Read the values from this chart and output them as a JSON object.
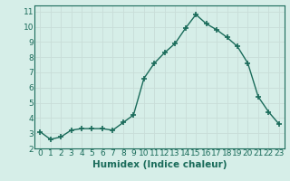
{
  "x": [
    0,
    1,
    2,
    3,
    4,
    5,
    6,
    7,
    8,
    9,
    10,
    11,
    12,
    13,
    14,
    15,
    16,
    17,
    18,
    19,
    20,
    21,
    22,
    23
  ],
  "y": [
    3.1,
    2.6,
    2.75,
    3.2,
    3.3,
    3.3,
    3.3,
    3.2,
    3.7,
    4.2,
    6.6,
    7.6,
    8.3,
    8.9,
    9.9,
    10.8,
    10.2,
    9.8,
    9.3,
    8.7,
    7.6,
    5.4,
    4.4,
    3.6
  ],
  "line_color": "#1a6b5a",
  "marker": "+",
  "marker_size": 4,
  "bg_color": "#d6eee8",
  "grid_color": "#c8ddd8",
  "xlabel": "Humidex (Indice chaleur)",
  "xlim": [
    -0.5,
    23.5
  ],
  "ylim": [
    2,
    11.4
  ],
  "yticks": [
    2,
    3,
    4,
    5,
    6,
    7,
    8,
    9,
    10,
    11
  ],
  "xticks": [
    0,
    1,
    2,
    3,
    4,
    5,
    6,
    7,
    8,
    9,
    10,
    11,
    12,
    13,
    14,
    15,
    16,
    17,
    18,
    19,
    20,
    21,
    22,
    23
  ],
  "tick_label_fontsize": 6.5,
  "xlabel_fontsize": 7.5
}
